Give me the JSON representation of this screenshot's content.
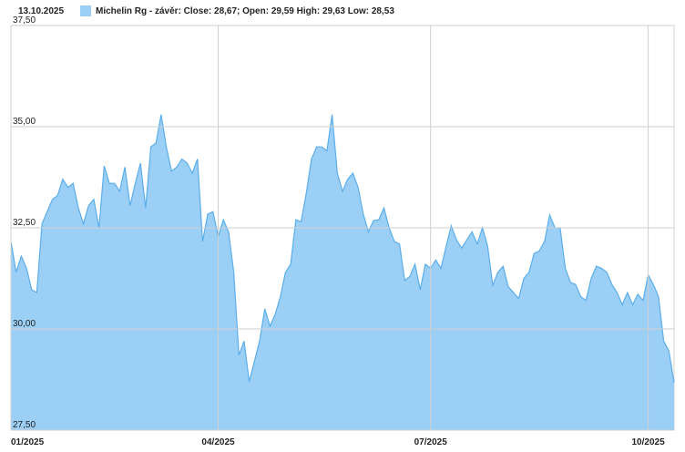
{
  "chart_data": {
    "type": "area",
    "date": "13.10.2025",
    "series": [
      {
        "name": "Michelin Rg - závěr: Close: 28,67; Open: 29,59 High: 29,63 Low: 28,53",
        "color": "#9ccff6",
        "line_color": "#5aaeea",
        "values": [
          32.16,
          31.4,
          31.8,
          31.5,
          30.97,
          30.9,
          32.6,
          32.9,
          33.2,
          33.3,
          33.7,
          33.5,
          33.6,
          33.0,
          32.6,
          33.05,
          33.2,
          32.5,
          34.03,
          33.6,
          33.6,
          33.4,
          34.0,
          33.05,
          33.6,
          34.1,
          32.99,
          34.5,
          34.6,
          35.3,
          34.5,
          33.9,
          34.0,
          34.2,
          34.1,
          33.85,
          34.2,
          32.16,
          32.84,
          32.9,
          32.28,
          32.7,
          32.4,
          31.4,
          29.35,
          29.7,
          28.7,
          29.2,
          29.7,
          30.5,
          30.07,
          30.36,
          30.8,
          31.4,
          31.6,
          32.7,
          32.65,
          33.35,
          34.2,
          34.5,
          34.5,
          34.4,
          35.3,
          33.85,
          33.4,
          33.7,
          33.85,
          33.5,
          32.84,
          32.4,
          32.68,
          32.7,
          32.99,
          32.5,
          32.16,
          32.1,
          31.2,
          31.3,
          31.6,
          30.97,
          31.6,
          31.5,
          31.7,
          31.5,
          32.05,
          32.55,
          32.2,
          32.0,
          32.2,
          32.4,
          32.1,
          32.5,
          32.05,
          31.08,
          31.4,
          31.55,
          31.04,
          30.9,
          30.75,
          31.25,
          31.4,
          31.87,
          31.93,
          32.16,
          32.82,
          32.5,
          32.5,
          31.5,
          31.15,
          31.1,
          30.8,
          30.7,
          31.25,
          31.55,
          31.5,
          31.4,
          31.1,
          30.9,
          30.6,
          30.9,
          30.6,
          30.86,
          30.7,
          31.33,
          31.1,
          30.8,
          29.7,
          29.46,
          28.67
        ]
      }
    ],
    "categories": [
      "01/2025",
      null,
      null,
      null,
      null,
      null,
      null,
      null,
      null,
      null,
      null,
      null,
      null,
      null,
      null,
      null,
      null,
      null,
      null,
      null,
      null,
      null,
      null,
      null,
      null,
      null,
      null,
      null,
      null,
      null,
      null,
      null,
      null,
      null,
      null,
      null,
      null,
      null,
      null,
      null,
      "04/2025",
      null,
      null,
      null,
      null,
      null,
      null,
      null,
      null,
      null,
      null,
      null,
      null,
      null,
      null,
      null,
      null,
      null,
      null,
      null,
      null,
      null,
      null,
      null,
      null,
      null,
      null,
      null,
      null,
      null,
      null,
      null,
      null,
      null,
      null,
      null,
      null,
      null,
      null,
      null,
      null,
      "07/2025",
      null,
      null,
      null,
      null,
      null,
      null,
      null,
      null,
      null,
      null,
      null,
      null,
      null,
      null,
      null,
      null,
      null,
      null,
      null,
      null,
      null,
      null,
      null,
      null,
      null,
      null,
      null,
      null,
      null,
      null,
      null,
      null,
      null,
      null,
      null,
      null,
      null,
      null,
      null,
      null,
      null,
      "10/2025",
      null,
      null,
      null,
      null,
      null
    ],
    "ylim": [
      27.5,
      37.5
    ],
    "yticks": [
      {
        "value": 27.5,
        "label": "27,50"
      },
      {
        "value": 30,
        "label": "30,00"
      },
      {
        "value": 32.5,
        "label": "32,50"
      },
      {
        "value": 35,
        "label": "35,00"
      },
      {
        "value": 37.5,
        "label": "37,50"
      }
    ],
    "grid": true
  }
}
